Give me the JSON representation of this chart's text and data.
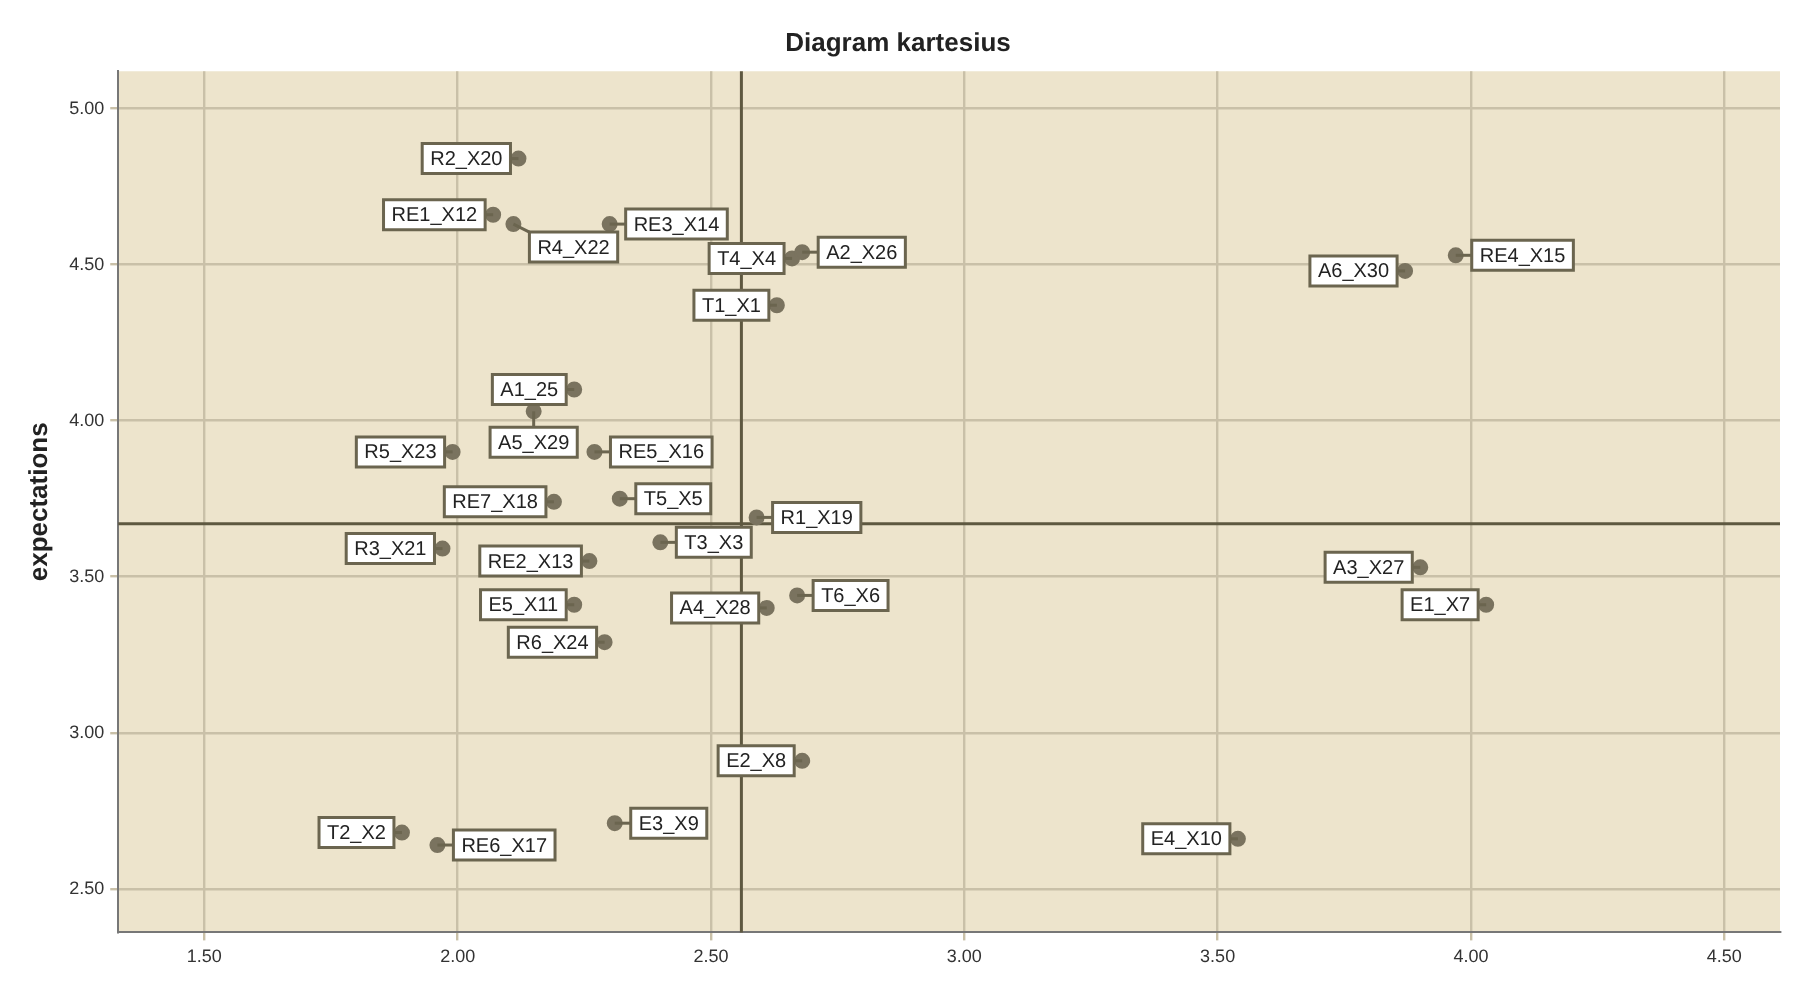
{
  "chart_data": {
    "type": "scatter",
    "title": "Diagram kartesius",
    "ylabel": "expectations",
    "xlim": [
      1.33,
      4.61
    ],
    "ylim": [
      2.36,
      5.12
    ],
    "xticks": [
      {
        "value": 1.5,
        "label": "1.50"
      },
      {
        "value": 2,
        "label": "2.00"
      },
      {
        "value": 2.5,
        "label": "2.50"
      },
      {
        "value": 3,
        "label": "3.00"
      },
      {
        "value": 3.5,
        "label": "3.50"
      },
      {
        "value": 4,
        "label": "4.00"
      },
      {
        "value": 4.5,
        "label": "4.50"
      }
    ],
    "yticks": [
      {
        "value": 2.5,
        "label": "2.50"
      },
      {
        "value": 3,
        "label": "3.00"
      },
      {
        "value": 3.5,
        "label": "3.50"
      },
      {
        "value": 4,
        "label": "4.00"
      },
      {
        "value": 4.5,
        "label": "4.50"
      },
      {
        "value": 5,
        "label": "5.00"
      }
    ],
    "grid": true,
    "marker": "circle",
    "series": [
      {
        "color": "#7a735f",
        "x": [
          2.12,
          2.07,
          2.11,
          2.3,
          2.66,
          2.68,
          2.63,
          2.23,
          2.15,
          2.27,
          1.99,
          2.32,
          2.19,
          2.59,
          2.26,
          2.4,
          1.97,
          2.67,
          2.61,
          2.23,
          2.29,
          2.68,
          1.89,
          1.96,
          2.31,
          3.97,
          3.87,
          3.9,
          4.03,
          3.54
        ],
        "values": [
          4.84,
          4.66,
          4.63,
          4.63,
          4.52,
          4.54,
          4.37,
          4.1,
          4.03,
          3.9,
          3.9,
          3.75,
          3.74,
          3.69,
          3.55,
          3.61,
          3.59,
          3.44,
          3.4,
          3.41,
          3.29,
          2.91,
          2.68,
          2.64,
          2.71,
          4.53,
          4.48,
          3.53,
          3.41,
          2.66
        ]
      }
    ],
    "ref_lines": [
      {
        "axis": "x",
        "value": 2.56,
        "color": "#5e5840"
      },
      {
        "axis": "y",
        "value": 3.67,
        "color": "#5e5840"
      }
    ],
    "annotations": [
      {
        "text": "R2_X20",
        "x": 2.12,
        "y": 4.84
      },
      {
        "text": "RE1_X12",
        "x": 2.07,
        "y": 4.66
      },
      {
        "text": "R4_X22",
        "x": 2.11,
        "y": 4.63
      },
      {
        "text": "RE3_X14",
        "x": 2.3,
        "y": 4.63
      },
      {
        "text": "T4_X4",
        "x": 2.66,
        "y": 4.52
      },
      {
        "text": "A2_X26",
        "x": 2.68,
        "y": 4.54
      },
      {
        "text": "T1_X1",
        "x": 2.63,
        "y": 4.37
      },
      {
        "text": "A1_25",
        "x": 2.23,
        "y": 4.1
      },
      {
        "text": "A5_X29",
        "x": 2.15,
        "y": 4.03
      },
      {
        "text": "RE5_X16",
        "x": 2.27,
        "y": 3.9
      },
      {
        "text": "R5_X23",
        "x": 1.99,
        "y": 3.9
      },
      {
        "text": "T5_X5",
        "x": 2.32,
        "y": 3.75
      },
      {
        "text": "RE7_X18",
        "x": 2.19,
        "y": 3.74
      },
      {
        "text": "R1_X19",
        "x": 2.59,
        "y": 3.69
      },
      {
        "text": "RE2_X13",
        "x": 2.26,
        "y": 3.55
      },
      {
        "text": "T3_X3",
        "x": 2.4,
        "y": 3.61
      },
      {
        "text": "R3_X21",
        "x": 1.97,
        "y": 3.59
      },
      {
        "text": "T6_X6",
        "x": 2.67,
        "y": 3.44
      },
      {
        "text": "A4_X28",
        "x": 2.61,
        "y": 3.4
      },
      {
        "text": "E5_X11",
        "x": 2.23,
        "y": 3.41
      },
      {
        "text": "R6_X24",
        "x": 2.29,
        "y": 3.29
      },
      {
        "text": "E2_X8",
        "x": 2.68,
        "y": 2.91
      },
      {
        "text": "T2_X2",
        "x": 1.89,
        "y": 2.68
      },
      {
        "text": "RE6_X17",
        "x": 1.96,
        "y": 2.64
      },
      {
        "text": "E3_X9",
        "x": 2.31,
        "y": 2.71
      },
      {
        "text": "RE4_X15",
        "x": 3.97,
        "y": 4.53
      },
      {
        "text": "A6_X30",
        "x": 3.87,
        "y": 4.48
      },
      {
        "text": "A3_X27",
        "x": 3.9,
        "y": 3.53
      },
      {
        "text": "E1_X7",
        "x": 4.03,
        "y": 3.41
      },
      {
        "text": "E4_X10",
        "x": 3.54,
        "y": 2.66
      }
    ]
  }
}
